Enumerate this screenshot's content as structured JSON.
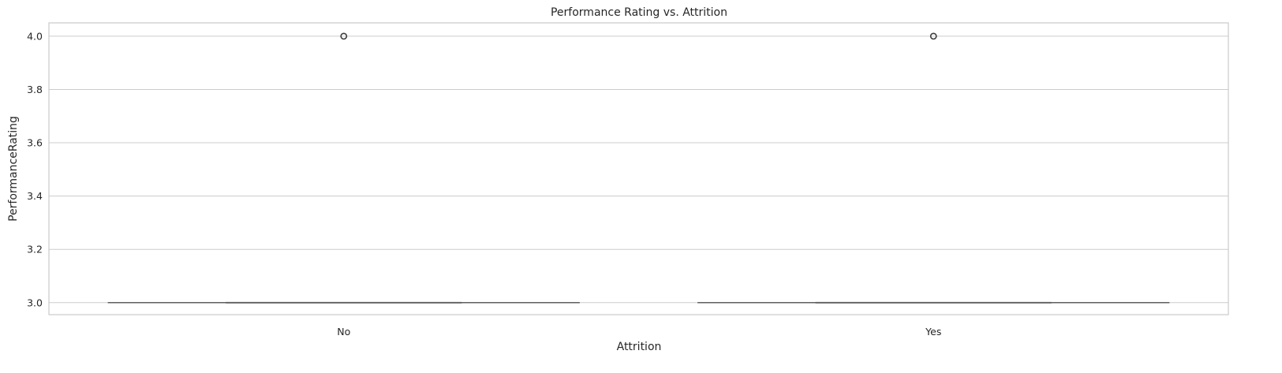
{
  "chart_data": {
    "type": "box",
    "title": "Performance Rating vs. Attrition",
    "xlabel": "Attrition",
    "ylabel": "PerformanceRating",
    "categories": [
      "No",
      "Yes"
    ],
    "ylim": [
      2.955,
      4.05
    ],
    "yticks": [
      3.0,
      3.2,
      3.4,
      3.6,
      3.8,
      4.0
    ],
    "ytick_labels": [
      "3.0",
      "3.2",
      "3.4",
      "3.6",
      "3.8",
      "4.0"
    ],
    "grid": "horizontal",
    "boxes": [
      {
        "category": "No",
        "whisker_low": 3.0,
        "q1": 3.0,
        "median": 3.0,
        "q3": 3.0,
        "whisker_high": 3.0,
        "outliers": [
          4.0
        ]
      },
      {
        "category": "Yes",
        "whisker_low": 3.0,
        "q1": 3.0,
        "median": 3.0,
        "q3": 3.0,
        "whisker_high": 3.0,
        "outliers": [
          4.0
        ]
      }
    ],
    "colors": {
      "grid": "#cccccc",
      "spine": "#cccccc",
      "box_line": "#5f5f5f",
      "text": "#262626"
    }
  }
}
